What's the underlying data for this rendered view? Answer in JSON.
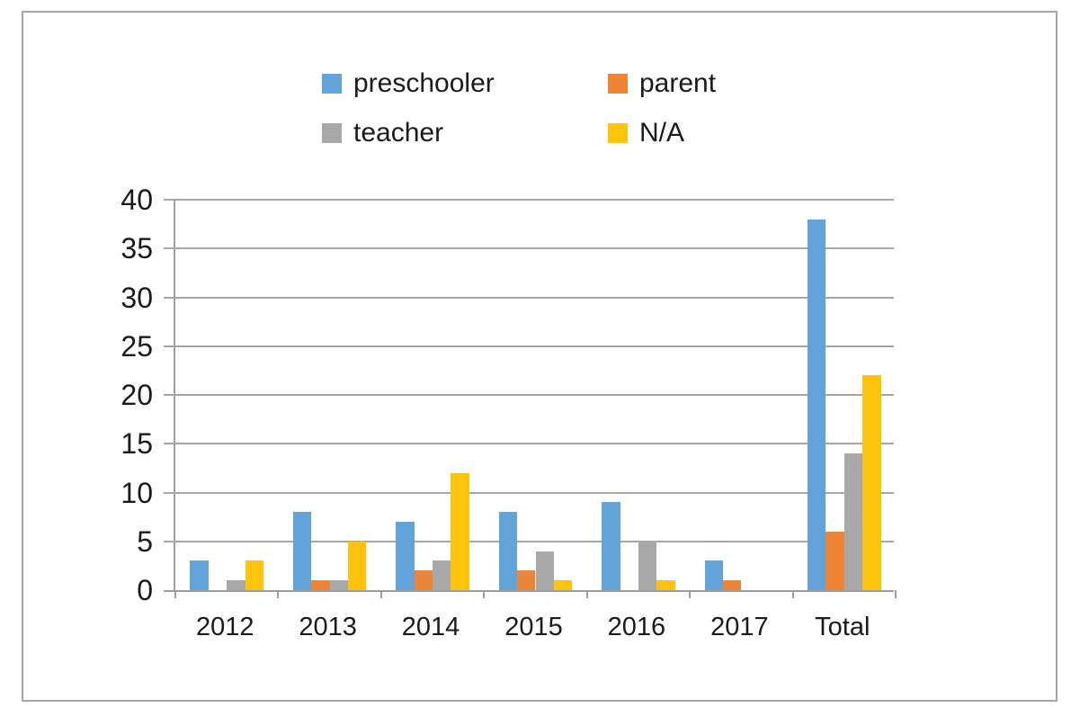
{
  "chart_data": {
    "type": "bar",
    "title": "",
    "xlabel": "",
    "ylabel": "",
    "categories": [
      "2012",
      "2013",
      "2014",
      "2015",
      "2016",
      "2017",
      "Total"
    ],
    "series": [
      {
        "name": "preschooler",
        "color": "#62a3da",
        "values": [
          3,
          8,
          7,
          8,
          9,
          3,
          38
        ]
      },
      {
        "name": "parent",
        "color": "#ee8536",
        "values": [
          0,
          1,
          2,
          2,
          0,
          1,
          6
        ]
      },
      {
        "name": "teacher",
        "color": "#a8a8a8",
        "values": [
          1,
          1,
          3,
          4,
          5,
          0,
          14
        ]
      },
      {
        "name": "N/A",
        "color": "#ffc30b",
        "values": [
          3,
          5,
          12,
          1,
          1,
          0,
          22
        ]
      }
    ],
    "ylim": [
      0,
      40
    ],
    "yticks": [
      0,
      5,
      10,
      15,
      20,
      25,
      30,
      35,
      40
    ],
    "grid": true,
    "legend_position": "top-center",
    "legend_rows": [
      [
        "preschooler",
        "parent"
      ],
      [
        "teacher",
        "N/A"
      ]
    ],
    "colors": {
      "gridline": "#a6a6a6",
      "axis": "#9d9d9d",
      "frame_border": "#a6a6a6",
      "text": "#1a1a1a",
      "background": "#ffffff"
    }
  }
}
